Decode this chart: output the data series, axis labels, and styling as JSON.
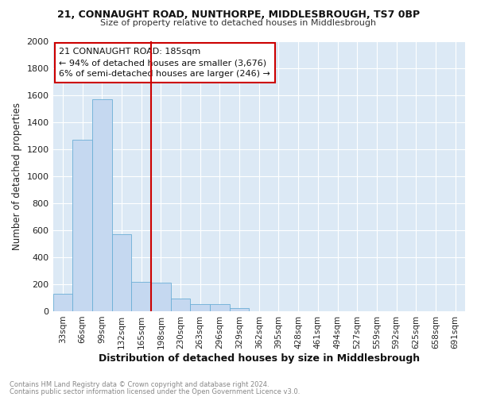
{
  "title1": "21, CONNAUGHT ROAD, NUNTHORPE, MIDDLESBROUGH, TS7 0BP",
  "title2": "Size of property relative to detached houses in Middlesbrough",
  "xlabel": "Distribution of detached houses by size in Middlesbrough",
  "ylabel": "Number of detached properties",
  "footnote1": "Contains HM Land Registry data © Crown copyright and database right 2024.",
  "footnote2": "Contains public sector information licensed under the Open Government Licence v3.0.",
  "annotation_line1": "21 CONNAUGHT ROAD: 185sqm",
  "annotation_line2": "← 94% of detached houses are smaller (3,676)",
  "annotation_line3": "6% of semi-detached houses are larger (246) →",
  "bar_labels": [
    "33sqm",
    "66sqm",
    "99sqm",
    "132sqm",
    "165sqm",
    "198sqm",
    "230sqm",
    "263sqm",
    "296sqm",
    "329sqm",
    "362sqm",
    "395sqm",
    "428sqm",
    "461sqm",
    "494sqm",
    "527sqm",
    "559sqm",
    "592sqm",
    "625sqm",
    "658sqm",
    "691sqm"
  ],
  "bar_values": [
    130,
    1270,
    1570,
    570,
    220,
    210,
    95,
    55,
    50,
    25,
    0,
    0,
    0,
    0,
    0,
    0,
    0,
    0,
    0,
    0,
    0
  ],
  "bar_color": "#c5d8f0",
  "bar_edge_color": "#6baed6",
  "vline_color": "#cc0000",
  "annotation_box_color": "#cc0000",
  "background_color": "#dce9f5",
  "grid_color": "#ffffff",
  "ylim": [
    0,
    2000
  ],
  "yticks": [
    0,
    200,
    400,
    600,
    800,
    1000,
    1200,
    1400,
    1600,
    1800,
    2000
  ],
  "vline_index": 5
}
